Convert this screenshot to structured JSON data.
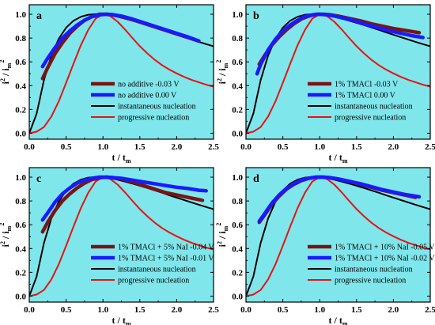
{
  "figure": {
    "background": "#ffffff",
    "plot_background": "#7fe6ec",
    "colors": {
      "brown": "#7a1414",
      "blue": "#1a1aff",
      "black": "#000000",
      "red": "#e8120f"
    }
  },
  "chart_data": [
    {
      "type": "line",
      "panel_label": "a",
      "xlabel": "t / t_m",
      "ylabel": "i^2 / i_m^2",
      "xlim": [
        0.0,
        2.5
      ],
      "ylim": [
        -0.05,
        1.08
      ],
      "xticks": [
        "0.0",
        "0.5",
        "1.0",
        "1.5",
        "2.0",
        "2.5"
      ],
      "yticks": [
        "0.0",
        "0.2",
        "0.4",
        "0.6",
        "0.8",
        "1.0"
      ],
      "legend_position": "center-right",
      "series": [
        {
          "name": "no additive  -0.03 V",
          "color": "brown",
          "x": [
            0.18,
            0.25,
            0.35,
            0.45,
            0.55,
            0.65,
            0.75,
            0.85,
            0.95,
            1.05,
            1.15,
            1.25,
            1.4,
            1.55,
            1.7,
            1.85,
            2.0,
            2.15,
            2.3
          ],
          "y": [
            0.46,
            0.55,
            0.67,
            0.76,
            0.84,
            0.9,
            0.95,
            0.98,
            1.0,
            1.0,
            0.995,
            0.98,
            0.955,
            0.925,
            0.895,
            0.865,
            0.835,
            0.805,
            0.775
          ]
        },
        {
          "name": "no additive   0.00 V",
          "color": "blue",
          "x": [
            0.18,
            0.25,
            0.35,
            0.45,
            0.55,
            0.65,
            0.75,
            0.85,
            0.95,
            1.05,
            1.15,
            1.25,
            1.4,
            1.55,
            1.7,
            1.85,
            2.0,
            2.15,
            2.3
          ],
          "y": [
            0.56,
            0.63,
            0.72,
            0.8,
            0.86,
            0.91,
            0.95,
            0.98,
            0.995,
            1.0,
            0.995,
            0.985,
            0.96,
            0.93,
            0.9,
            0.87,
            0.84,
            0.81,
            0.775
          ]
        },
        {
          "name": "instantaneous nucleation",
          "color": "black",
          "model": "instantaneous",
          "x": [
            0.0,
            0.1,
            0.2,
            0.3,
            0.4,
            0.5,
            0.6,
            0.7,
            0.8,
            0.9,
            1.0,
            1.1,
            1.2,
            1.3,
            1.4,
            1.5,
            1.6,
            1.7,
            1.8,
            1.9,
            2.0,
            2.1,
            2.2,
            2.3,
            2.4,
            2.5
          ],
          "y": [
            0.0,
            0.164,
            0.447,
            0.653,
            0.794,
            0.887,
            0.946,
            0.979,
            0.996,
            1.001,
            0.998,
            0.99,
            0.978,
            0.963,
            0.946,
            0.928,
            0.909,
            0.889,
            0.869,
            0.848,
            0.828,
            0.808,
            0.788,
            0.768,
            0.749,
            0.731
          ]
        },
        {
          "name": "progressive nucleation",
          "color": "red",
          "model": "progressive",
          "x": [
            0.0,
            0.1,
            0.2,
            0.3,
            0.4,
            0.5,
            0.6,
            0.7,
            0.8,
            0.9,
            1.0,
            1.1,
            1.2,
            1.3,
            1.4,
            1.5,
            1.6,
            1.7,
            1.8,
            1.9,
            2.0,
            2.1,
            2.2,
            2.3,
            2.4,
            2.5
          ],
          "y": [
            0.0,
            0.013,
            0.052,
            0.141,
            0.268,
            0.423,
            0.584,
            0.739,
            0.869,
            0.964,
            1.0,
            0.984,
            0.937,
            0.871,
            0.8,
            0.732,
            0.672,
            0.619,
            0.573,
            0.535,
            0.503,
            0.474,
            0.449,
            0.428,
            0.408,
            0.392
          ]
        }
      ]
    },
    {
      "type": "line",
      "panel_label": "b",
      "xlabel": "t / t_m",
      "ylabel": "i^2 / i_m^2",
      "xlim": [
        0.0,
        2.5
      ],
      "ylim": [
        -0.05,
        1.08
      ],
      "xticks": [
        "0.0",
        "0.5",
        "1.0",
        "1.5",
        "2.0",
        "2.5"
      ],
      "yticks": [
        "0.0",
        "0.2",
        "0.4",
        "0.6",
        "0.8",
        "1.0"
      ],
      "legend_position": "center-right",
      "series": [
        {
          "name": "1%  TMACl  -0.03 V",
          "color": "brown",
          "x": [
            0.18,
            0.25,
            0.35,
            0.45,
            0.55,
            0.65,
            0.75,
            0.85,
            0.95,
            1.05,
            1.15,
            1.25,
            1.4,
            1.55,
            1.7,
            1.85,
            2.0,
            2.15,
            2.35
          ],
          "y": [
            0.58,
            0.65,
            0.74,
            0.81,
            0.87,
            0.92,
            0.96,
            0.985,
            1.0,
            1.0,
            0.995,
            0.985,
            0.965,
            0.945,
            0.92,
            0.9,
            0.88,
            0.865,
            0.845
          ]
        },
        {
          "name": "1%  TMACl   0.00 V",
          "color": "blue",
          "x": [
            0.15,
            0.2,
            0.3,
            0.4,
            0.5,
            0.6,
            0.7,
            0.8,
            0.9,
            1.0,
            1.1,
            1.2,
            1.35,
            1.5,
            1.65,
            1.8,
            1.95,
            2.1,
            2.25,
            2.4
          ],
          "y": [
            0.5,
            0.58,
            0.7,
            0.79,
            0.86,
            0.91,
            0.95,
            0.98,
            0.995,
            1.0,
            0.995,
            0.985,
            0.965,
            0.94,
            0.91,
            0.885,
            0.86,
            0.84,
            0.82,
            0.805
          ]
        },
        {
          "name": "instantaneous nucleation",
          "color": "black",
          "model": "instantaneous",
          "x": [
            0.0,
            0.1,
            0.2,
            0.3,
            0.4,
            0.5,
            0.6,
            0.7,
            0.8,
            0.9,
            1.0,
            1.1,
            1.2,
            1.3,
            1.4,
            1.5,
            1.6,
            1.7,
            1.8,
            1.9,
            2.0,
            2.1,
            2.2,
            2.3,
            2.4,
            2.5
          ],
          "y": [
            0.0,
            0.164,
            0.447,
            0.653,
            0.794,
            0.887,
            0.946,
            0.979,
            0.996,
            1.001,
            0.998,
            0.99,
            0.978,
            0.963,
            0.946,
            0.928,
            0.909,
            0.889,
            0.869,
            0.848,
            0.828,
            0.808,
            0.788,
            0.768,
            0.749,
            0.731
          ]
        },
        {
          "name": "progressive nucleation",
          "color": "red",
          "model": "progressive",
          "x": [
            0.0,
            0.1,
            0.2,
            0.3,
            0.4,
            0.5,
            0.6,
            0.7,
            0.8,
            0.9,
            1.0,
            1.1,
            1.2,
            1.3,
            1.4,
            1.5,
            1.6,
            1.7,
            1.8,
            1.9,
            2.0,
            2.1,
            2.2,
            2.3,
            2.4,
            2.5
          ],
          "y": [
            0.0,
            0.013,
            0.052,
            0.141,
            0.268,
            0.423,
            0.584,
            0.739,
            0.869,
            0.964,
            1.0,
            0.984,
            0.937,
            0.871,
            0.8,
            0.732,
            0.672,
            0.619,
            0.573,
            0.535,
            0.503,
            0.474,
            0.449,
            0.428,
            0.408,
            0.392
          ]
        }
      ]
    },
    {
      "type": "line",
      "panel_label": "c",
      "xlabel": "t / t_m",
      "ylabel": "i^2 / i_m^2",
      "xlim": [
        0.0,
        2.5
      ],
      "ylim": [
        -0.05,
        1.08
      ],
      "xticks": [
        "0.0",
        "0.5",
        "1.0",
        "1.5",
        "2.0",
        "2.5"
      ],
      "yticks": [
        "0.0",
        "0.2",
        "0.4",
        "0.6",
        "0.8",
        "1.0"
      ],
      "legend_position": "center-right",
      "series": [
        {
          "name": "1% TMACl + 5% NaI  -0.04 V",
          "color": "brown",
          "x": [
            0.18,
            0.25,
            0.35,
            0.45,
            0.55,
            0.65,
            0.75,
            0.85,
            0.95,
            1.05,
            1.15,
            1.25,
            1.4,
            1.55,
            1.7,
            1.85,
            2.0,
            2.15,
            2.35
          ],
          "y": [
            0.54,
            0.62,
            0.72,
            0.8,
            0.86,
            0.91,
            0.95,
            0.98,
            0.995,
            1.0,
            0.995,
            0.985,
            0.96,
            0.93,
            0.9,
            0.87,
            0.85,
            0.83,
            0.805
          ]
        },
        {
          "name": "1% TMACl + 5% NaI  -0.01 V",
          "color": "blue",
          "x": [
            0.18,
            0.25,
            0.35,
            0.45,
            0.55,
            0.65,
            0.75,
            0.85,
            0.95,
            1.05,
            1.15,
            1.25,
            1.4,
            1.55,
            1.7,
            1.85,
            2.0,
            2.15,
            2.3,
            2.4
          ],
          "y": [
            0.64,
            0.7,
            0.79,
            0.86,
            0.91,
            0.95,
            0.975,
            0.99,
            1.0,
            1.0,
            0.995,
            0.99,
            0.975,
            0.96,
            0.945,
            0.93,
            0.915,
            0.905,
            0.89,
            0.885
          ]
        },
        {
          "name": "instantaneous nucleation",
          "color": "black",
          "model": "instantaneous",
          "x": [
            0.0,
            0.1,
            0.2,
            0.3,
            0.4,
            0.5,
            0.6,
            0.7,
            0.8,
            0.9,
            1.0,
            1.1,
            1.2,
            1.3,
            1.4,
            1.5,
            1.6,
            1.7,
            1.8,
            1.9,
            2.0,
            2.1,
            2.2,
            2.3,
            2.4,
            2.5
          ],
          "y": [
            0.0,
            0.164,
            0.447,
            0.653,
            0.794,
            0.887,
            0.946,
            0.979,
            0.996,
            1.001,
            0.998,
            0.99,
            0.978,
            0.963,
            0.946,
            0.928,
            0.909,
            0.889,
            0.869,
            0.848,
            0.828,
            0.808,
            0.788,
            0.768,
            0.749,
            0.731
          ]
        },
        {
          "name": "progressive nucleation",
          "color": "red",
          "model": "progressive",
          "x": [
            0.0,
            0.1,
            0.2,
            0.3,
            0.4,
            0.5,
            0.6,
            0.7,
            0.8,
            0.9,
            1.0,
            1.1,
            1.2,
            1.3,
            1.4,
            1.5,
            1.6,
            1.7,
            1.8,
            1.9,
            2.0,
            2.1,
            2.2,
            2.3,
            2.4,
            2.5
          ],
          "y": [
            0.0,
            0.013,
            0.052,
            0.141,
            0.268,
            0.423,
            0.584,
            0.739,
            0.869,
            0.964,
            1.0,
            0.984,
            0.937,
            0.871,
            0.8,
            0.732,
            0.672,
            0.619,
            0.573,
            0.535,
            0.503,
            0.474,
            0.449,
            0.428,
            0.408,
            0.392
          ]
        }
      ]
    },
    {
      "type": "line",
      "panel_label": "d",
      "xlabel": "t / t_m",
      "ylabel": "i^2 / i_m^2",
      "xlim": [
        0.0,
        2.5
      ],
      "ylim": [
        -0.05,
        1.08
      ],
      "xticks": [
        "0.0",
        "0.5",
        "1.0",
        "1.5",
        "2.0",
        "2.5"
      ],
      "yticks": [
        "0.0",
        "0.2",
        "0.4",
        "0.6",
        "0.8",
        "1.0"
      ],
      "legend_position": "center-right",
      "series": [
        {
          "name": "1% TMACl + 10% NaI  -0.05 V",
          "color": "brown",
          "x": [
            0.18,
            0.25,
            0.35,
            0.45,
            0.55,
            0.65,
            0.75,
            0.85,
            0.95,
            1.05,
            1.15,
            1.25,
            1.4,
            1.55,
            1.7,
            1.85,
            2.0,
            2.15,
            2.3
          ],
          "y": [
            0.62,
            0.68,
            0.77,
            0.84,
            0.9,
            0.94,
            0.97,
            0.99,
            1.0,
            1.0,
            0.995,
            0.985,
            0.965,
            0.94,
            0.915,
            0.89,
            0.87,
            0.85,
            0.83
          ]
        },
        {
          "name": "1% TMACl + 10% NaI  -0.02 V",
          "color": "blue",
          "x": [
            0.18,
            0.25,
            0.35,
            0.45,
            0.55,
            0.65,
            0.75,
            0.85,
            0.95,
            1.05,
            1.15,
            1.25,
            1.4,
            1.55,
            1.7,
            1.85,
            2.0,
            2.15,
            2.35
          ],
          "y": [
            0.63,
            0.69,
            0.78,
            0.85,
            0.905,
            0.945,
            0.975,
            0.99,
            1.0,
            1.0,
            0.995,
            0.985,
            0.965,
            0.945,
            0.92,
            0.895,
            0.875,
            0.855,
            0.835
          ]
        },
        {
          "name": "instantaneous nucleation",
          "color": "black",
          "model": "instantaneous",
          "x": [
            0.0,
            0.1,
            0.2,
            0.3,
            0.4,
            0.5,
            0.6,
            0.7,
            0.8,
            0.9,
            1.0,
            1.1,
            1.2,
            1.3,
            1.4,
            1.5,
            1.6,
            1.7,
            1.8,
            1.9,
            2.0,
            2.1,
            2.2,
            2.3,
            2.4,
            2.5
          ],
          "y": [
            0.0,
            0.164,
            0.447,
            0.653,
            0.794,
            0.887,
            0.946,
            0.979,
            0.996,
            1.001,
            0.998,
            0.99,
            0.978,
            0.963,
            0.946,
            0.928,
            0.909,
            0.889,
            0.869,
            0.848,
            0.828,
            0.808,
            0.788,
            0.768,
            0.749,
            0.731
          ]
        },
        {
          "name": "progressive nucleation",
          "color": "red",
          "model": "progressive",
          "x": [
            0.0,
            0.1,
            0.2,
            0.3,
            0.4,
            0.5,
            0.6,
            0.7,
            0.8,
            0.9,
            1.0,
            1.1,
            1.2,
            1.3,
            1.4,
            1.5,
            1.6,
            1.7,
            1.8,
            1.9,
            2.0,
            2.1,
            2.2,
            2.3,
            2.4,
            2.5
          ],
          "y": [
            0.0,
            0.013,
            0.052,
            0.141,
            0.268,
            0.423,
            0.584,
            0.739,
            0.869,
            0.964,
            1.0,
            0.984,
            0.937,
            0.871,
            0.8,
            0.732,
            0.672,
            0.619,
            0.573,
            0.535,
            0.503,
            0.474,
            0.449,
            0.428,
            0.408,
            0.392
          ]
        }
      ]
    }
  ]
}
